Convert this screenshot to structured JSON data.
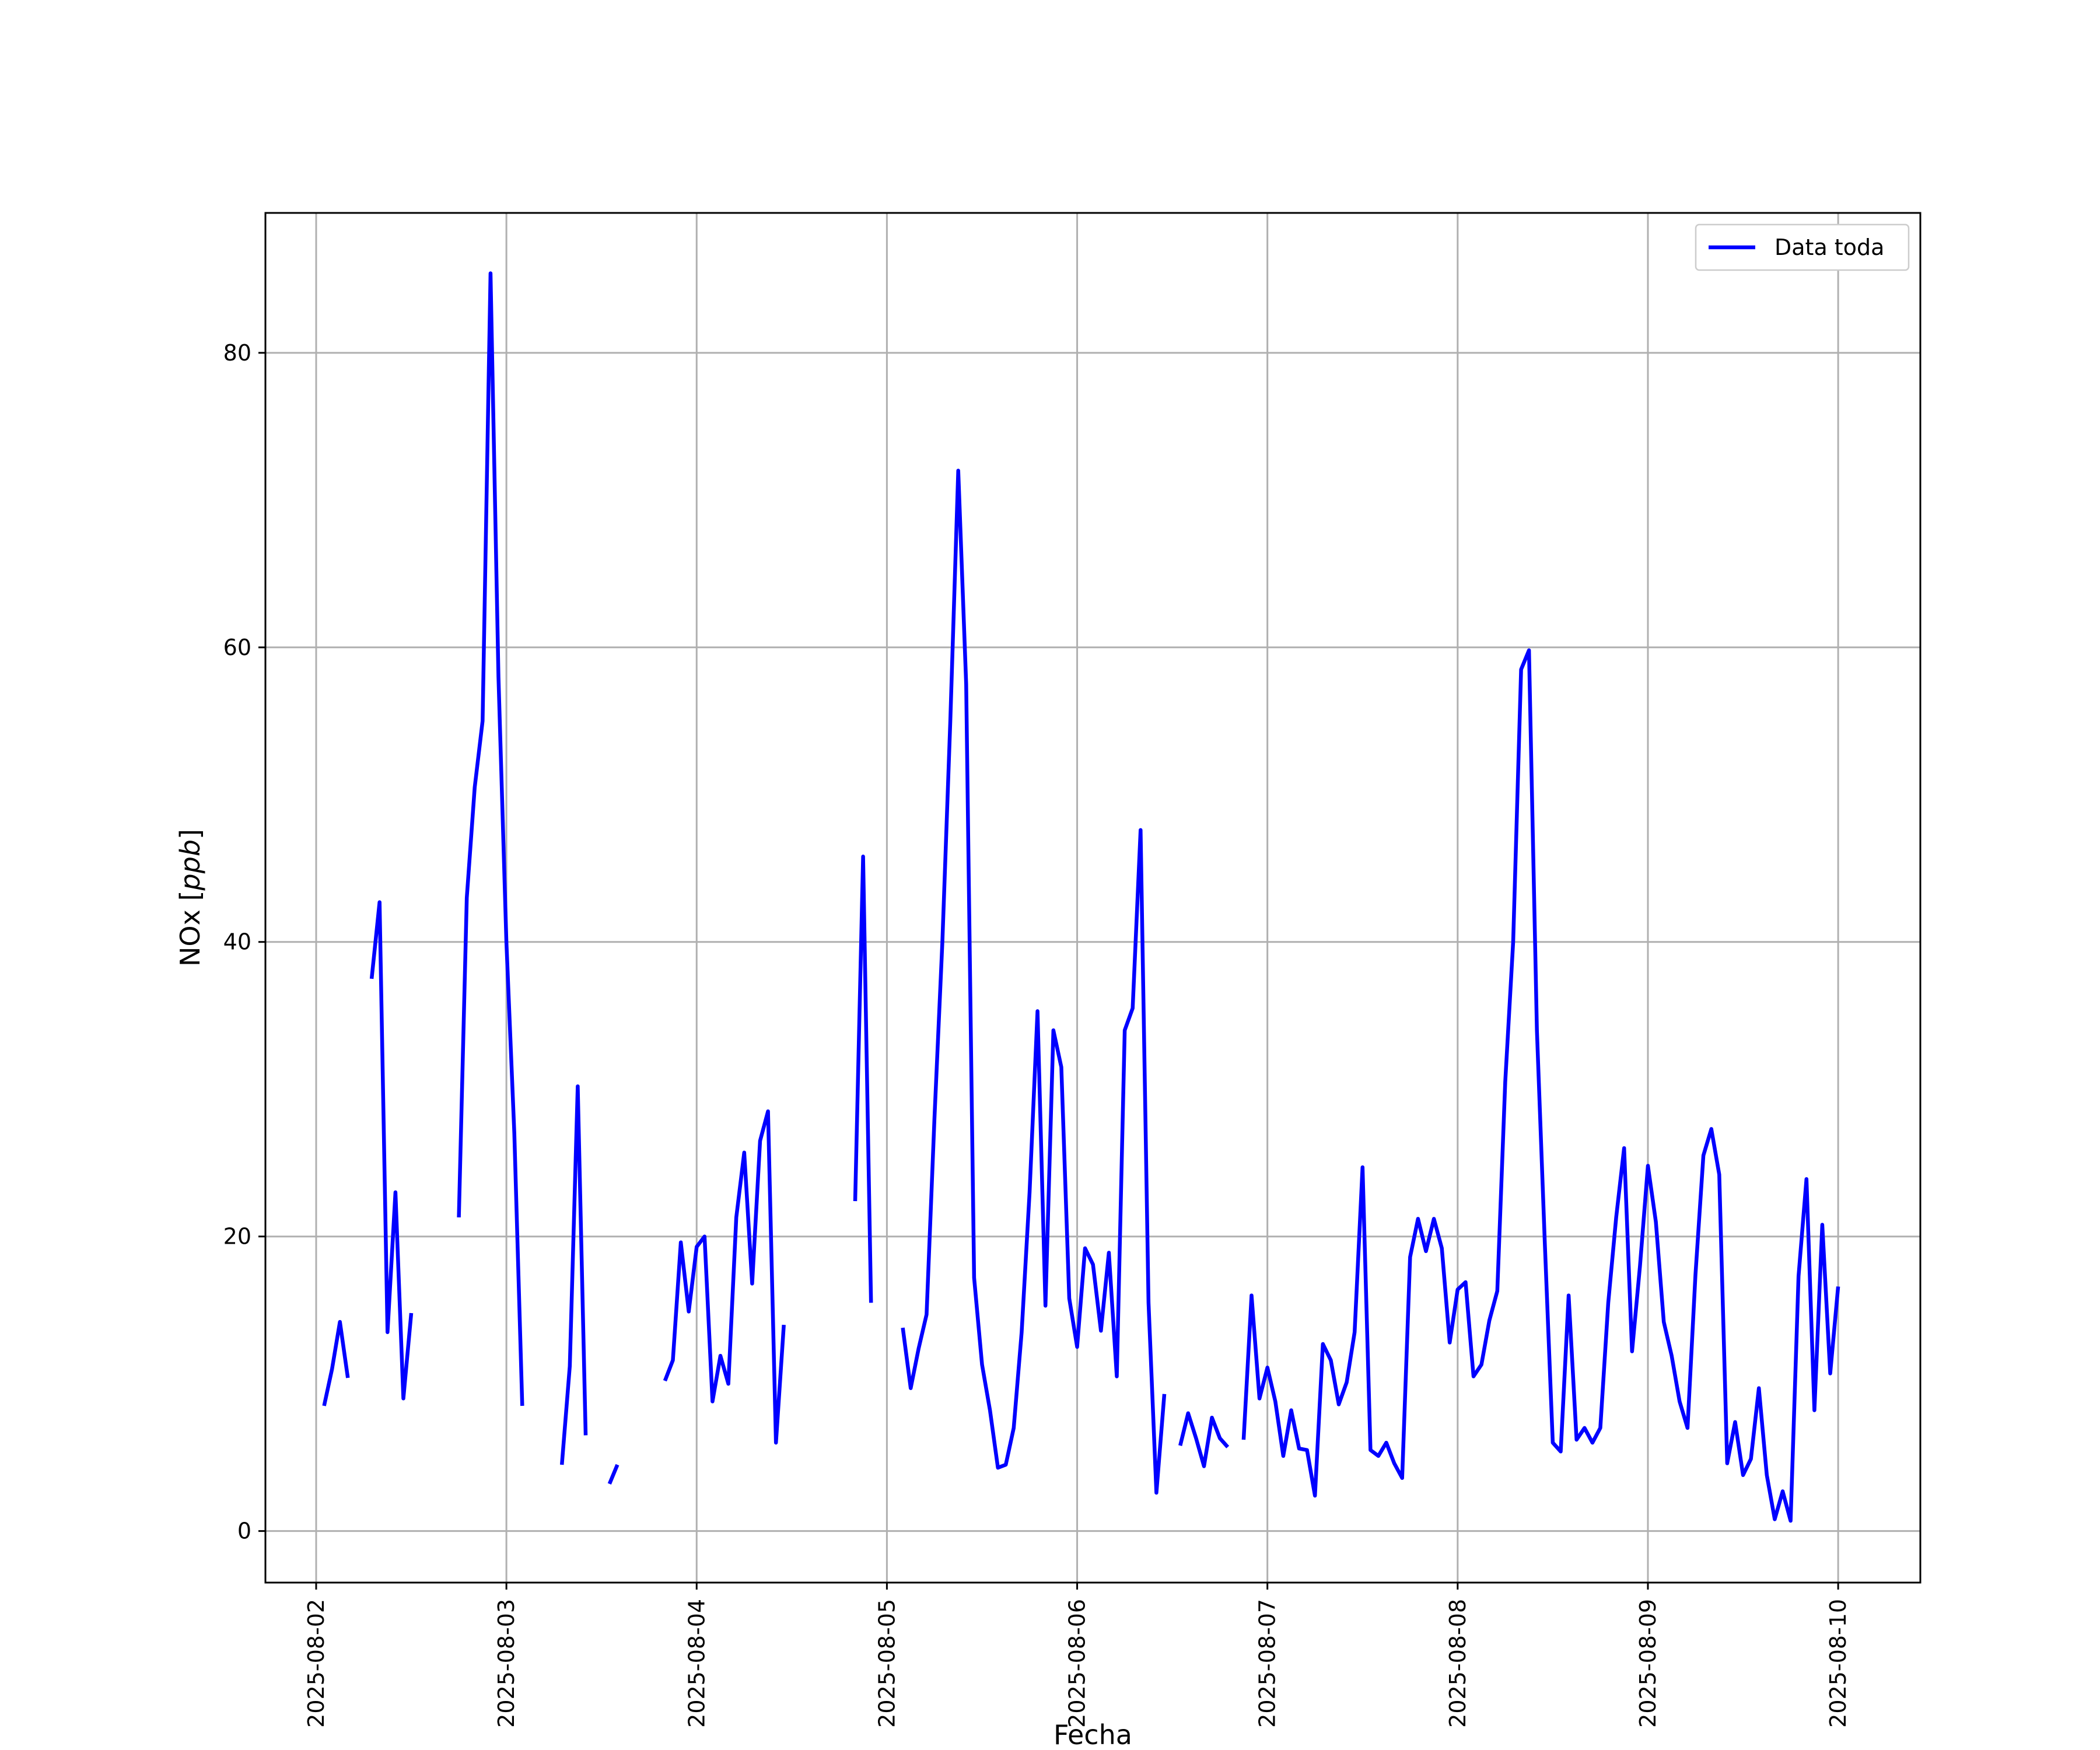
{
  "chart_data": {
    "type": "line",
    "xlabel": "Fecha",
    "ylabel": {
      "prefix": "NOx [",
      "unit": "ppb",
      "suffix": "]"
    },
    "x_ticks": [
      "2025-08-02",
      "2025-08-03",
      "2025-08-04",
      "2025-08-05",
      "2025-08-06",
      "2025-08-07",
      "2025-08-08",
      "2025-08-09",
      "2025-08-10"
    ],
    "y_ticks": [
      0,
      20,
      40,
      60,
      80
    ],
    "xlim": [
      "2025-08-01T17:36",
      "2025-08-10T10:22"
    ],
    "ylim": [
      -3.5,
      89.5
    ],
    "grid": true,
    "legend": {
      "placement": "top-right",
      "entries": [
        "Data toda"
      ]
    },
    "series": [
      {
        "name": "Data toda",
        "color": "#0000ff",
        "segments": [
          [
            [
              "2025-08-02T01:00",
              8.5
            ],
            [
              "2025-08-02T02:00",
              11.0
            ],
            [
              "2025-08-02T03:00",
              14.2
            ],
            [
              "2025-08-02T04:00",
              10.4
            ]
          ],
          [
            [
              "2025-08-02T07:00",
              37.5
            ],
            [
              "2025-08-02T08:00",
              42.7
            ],
            [
              "2025-08-02T09:00",
              13.5
            ],
            [
              "2025-08-02T10:00",
              23.0
            ],
            [
              "2025-08-02T11:00",
              9.0
            ],
            [
              "2025-08-02T12:00",
              14.8
            ]
          ],
          [
            [
              "2025-08-02T18:00",
              21.3
            ],
            [
              "2025-08-02T19:00",
              43.0
            ],
            [
              "2025-08-02T20:00",
              50.5
            ],
            [
              "2025-08-02T21:00",
              55.0
            ],
            [
              "2025-08-02T22:00",
              85.4
            ],
            [
              "2025-08-02T23:00",
              58.0
            ],
            [
              "2025-08-03T00:00",
              40.0
            ],
            [
              "2025-08-03T01:00",
              27.0
            ],
            [
              "2025-08-03T02:00",
              8.5
            ]
          ],
          [
            [
              "2025-08-03T07:00",
              4.5
            ],
            [
              "2025-08-03T08:00",
              11.2
            ],
            [
              "2025-08-03T09:00",
              30.2
            ],
            [
              "2025-08-03T10:00",
              6.5
            ]
          ],
          [
            [
              "2025-08-03T13:00",
              3.2
            ],
            [
              "2025-08-03T14:00",
              4.5
            ]
          ],
          [
            [
              "2025-08-03T20:00",
              10.2
            ],
            [
              "2025-08-03T21:00",
              11.6
            ],
            [
              "2025-08-03T22:00",
              19.6
            ],
            [
              "2025-08-03T23:00",
              14.9
            ],
            [
              "2025-08-04T00:00",
              19.3
            ],
            [
              "2025-08-04T01:00",
              20.0
            ],
            [
              "2025-08-04T02:00",
              8.8
            ],
            [
              "2025-08-04T03:00",
              11.9
            ],
            [
              "2025-08-04T04:00",
              10.0
            ],
            [
              "2025-08-04T05:00",
              21.3
            ],
            [
              "2025-08-04T06:00",
              25.7
            ],
            [
              "2025-08-04T07:00",
              16.8
            ],
            [
              "2025-08-04T08:00",
              26.5
            ],
            [
              "2025-08-04T09:00",
              28.5
            ],
            [
              "2025-08-04T10:00",
              6.0
            ],
            [
              "2025-08-04T11:00",
              14.0
            ]
          ],
          [
            [
              "2025-08-04T20:00",
              22.4
            ],
            [
              "2025-08-04T21:00",
              45.8
            ],
            [
              "2025-08-04T22:00",
              15.5
            ]
          ],
          [
            [
              "2025-08-05T02:00",
              13.8
            ],
            [
              "2025-08-05T03:00",
              9.7
            ],
            [
              "2025-08-05T04:00",
              12.4
            ],
            [
              "2025-08-05T05:00",
              14.7
            ],
            [
              "2025-08-05T06:00",
              28.0
            ],
            [
              "2025-08-05T07:00",
              40.0
            ],
            [
              "2025-08-05T08:00",
              55.0
            ],
            [
              "2025-08-05T09:00",
              72.0
            ],
            [
              "2025-08-05T10:00",
              57.5
            ],
            [
              "2025-08-05T11:00",
              17.2
            ],
            [
              "2025-08-05T12:00",
              11.3
            ],
            [
              "2025-08-05T13:00",
              8.2
            ],
            [
              "2025-08-05T14:00",
              4.3
            ],
            [
              "2025-08-05T15:00",
              4.5
            ],
            [
              "2025-08-05T16:00",
              7.0
            ],
            [
              "2025-08-05T17:00",
              13.5
            ],
            [
              "2025-08-05T18:00",
              23.0
            ],
            [
              "2025-08-05T19:00",
              35.3
            ],
            [
              "2025-08-05T20:00",
              15.3
            ],
            [
              "2025-08-05T21:00",
              34.0
            ],
            [
              "2025-08-05T22:00",
              31.5
            ],
            [
              "2025-08-05T23:00",
              15.8
            ],
            [
              "2025-08-06T00:00",
              12.5
            ],
            [
              "2025-08-06T01:00",
              19.2
            ],
            [
              "2025-08-06T02:00",
              18.1
            ],
            [
              "2025-08-06T03:00",
              13.6
            ],
            [
              "2025-08-06T04:00",
              18.9
            ],
            [
              "2025-08-06T05:00",
              10.5
            ],
            [
              "2025-08-06T06:00",
              34.0
            ],
            [
              "2025-08-06T07:00",
              35.5
            ],
            [
              "2025-08-06T08:00",
              47.6
            ],
            [
              "2025-08-06T09:00",
              15.5
            ],
            [
              "2025-08-06T10:00",
              2.6
            ],
            [
              "2025-08-06T11:00",
              9.3
            ]
          ],
          [
            [
              "2025-08-06T13:00",
              5.8
            ],
            [
              "2025-08-06T14:00",
              8.0
            ],
            [
              "2025-08-06T15:00",
              6.3
            ],
            [
              "2025-08-06T16:00",
              4.4
            ],
            [
              "2025-08-06T17:00",
              7.7
            ],
            [
              "2025-08-06T18:00",
              6.3
            ],
            [
              "2025-08-06T19:00",
              5.7
            ]
          ],
          [
            [
              "2025-08-06T21:00",
              6.2
            ],
            [
              "2025-08-06T22:00",
              16.0
            ],
            [
              "2025-08-06T23:00",
              9.0
            ],
            [
              "2025-08-07T00:00",
              11.1
            ],
            [
              "2025-08-07T01:00",
              8.8
            ],
            [
              "2025-08-07T02:00",
              5.1
            ],
            [
              "2025-08-07T03:00",
              8.2
            ],
            [
              "2025-08-07T04:00",
              5.6
            ],
            [
              "2025-08-07T05:00",
              5.5
            ],
            [
              "2025-08-07T06:00",
              2.4
            ],
            [
              "2025-08-07T07:00",
              12.7
            ],
            [
              "2025-08-07T08:00",
              11.6
            ],
            [
              "2025-08-07T09:00",
              8.6
            ],
            [
              "2025-08-07T10:00",
              10.1
            ],
            [
              "2025-08-07T11:00",
              13.5
            ],
            [
              "2025-08-07T12:00",
              24.7
            ],
            [
              "2025-08-07T13:00",
              5.5
            ],
            [
              "2025-08-07T14:00",
              5.1
            ],
            [
              "2025-08-07T15:00",
              6.0
            ],
            [
              "2025-08-07T16:00",
              4.6
            ],
            [
              "2025-08-07T17:00",
              3.6
            ],
            [
              "2025-08-07T18:00",
              18.6
            ],
            [
              "2025-08-07T19:00",
              21.2
            ],
            [
              "2025-08-07T20:00",
              19.0
            ],
            [
              "2025-08-07T21:00",
              21.2
            ],
            [
              "2025-08-07T22:00",
              19.2
            ],
            [
              "2025-08-07T23:00",
              12.8
            ],
            [
              "2025-08-08T00:00",
              16.4
            ],
            [
              "2025-08-08T01:00",
              16.9
            ],
            [
              "2025-08-08T02:00",
              10.5
            ],
            [
              "2025-08-08T03:00",
              11.3
            ],
            [
              "2025-08-08T04:00",
              14.3
            ],
            [
              "2025-08-08T05:00",
              16.3
            ],
            [
              "2025-08-08T06:00",
              30.5
            ],
            [
              "2025-08-08T07:00",
              40.0
            ],
            [
              "2025-08-08T08:00",
              58.5
            ],
            [
              "2025-08-08T09:00",
              59.8
            ],
            [
              "2025-08-08T10:00",
              34.0
            ],
            [
              "2025-08-08T11:00",
              19.5
            ],
            [
              "2025-08-08T12:00",
              6.0
            ],
            [
              "2025-08-08T13:00",
              5.4
            ],
            [
              "2025-08-08T14:00",
              16.0
            ],
            [
              "2025-08-08T15:00",
              6.2
            ],
            [
              "2025-08-08T16:00",
              7.0
            ],
            [
              "2025-08-08T17:00",
              6.0
            ],
            [
              "2025-08-08T18:00",
              7.0
            ],
            [
              "2025-08-08T19:00",
              15.5
            ],
            [
              "2025-08-08T20:00",
              21.3
            ],
            [
              "2025-08-08T21:00",
              26.0
            ],
            [
              "2025-08-08T22:00",
              12.2
            ],
            [
              "2025-08-08T23:00",
              18.0
            ],
            [
              "2025-08-09T00:00",
              24.8
            ],
            [
              "2025-08-09T01:00",
              21.0
            ],
            [
              "2025-08-09T02:00",
              14.2
            ],
            [
              "2025-08-09T03:00",
              11.9
            ],
            [
              "2025-08-09T04:00",
              8.8
            ],
            [
              "2025-08-09T05:00",
              7.0
            ],
            [
              "2025-08-09T06:00",
              17.4
            ],
            [
              "2025-08-09T07:00",
              25.5
            ],
            [
              "2025-08-09T08:00",
              27.3
            ],
            [
              "2025-08-09T09:00",
              24.2
            ],
            [
              "2025-08-09T10:00",
              4.6
            ],
            [
              "2025-08-09T11:00",
              7.4
            ],
            [
              "2025-08-09T12:00",
              3.8
            ],
            [
              "2025-08-09T13:00",
              4.9
            ],
            [
              "2025-08-09T14:00",
              9.7
            ],
            [
              "2025-08-09T15:00",
              3.8
            ],
            [
              "2025-08-09T16:00",
              0.8
            ],
            [
              "2025-08-09T17:00",
              2.7
            ],
            [
              "2025-08-09T18:00",
              0.7
            ],
            [
              "2025-08-09T19:00",
              17.3
            ],
            [
              "2025-08-09T20:00",
              23.9
            ],
            [
              "2025-08-09T21:00",
              8.2
            ],
            [
              "2025-08-09T22:00",
              20.8
            ],
            [
              "2025-08-09T23:00",
              10.7
            ],
            [
              "2025-08-10T00:00",
              16.6
            ]
          ]
        ]
      }
    ]
  }
}
